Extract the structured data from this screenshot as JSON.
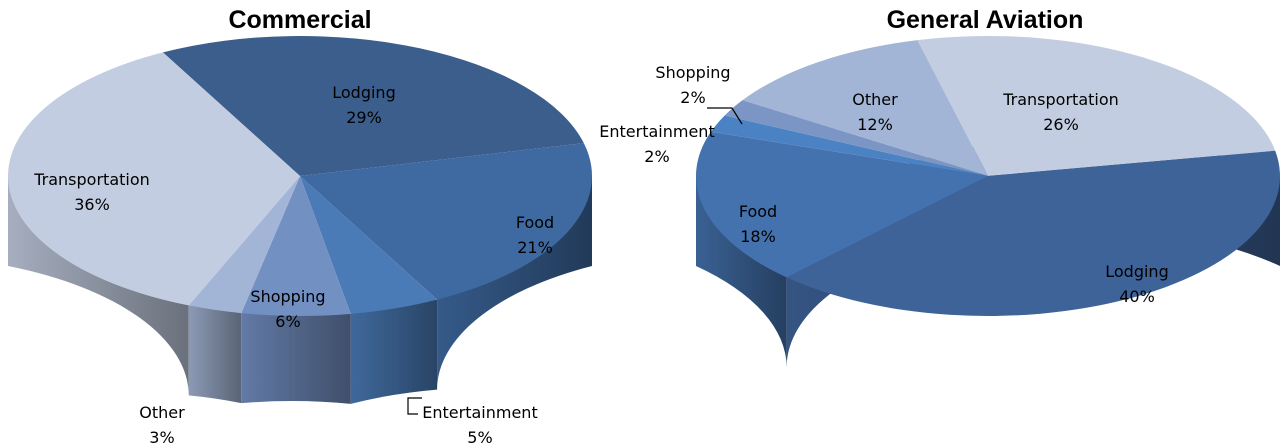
{
  "chart_data": [
    {
      "type": "pie",
      "style": "3d",
      "title": "Commercial",
      "slices": [
        {
          "label": "Lodging",
          "value": 29,
          "pct_label": "29%",
          "color": "#3C5E8C"
        },
        {
          "label": "Food",
          "value": 21,
          "pct_label": "21%",
          "color": "#3E6AA1"
        },
        {
          "label": "Entertainment",
          "value": 5,
          "pct_label": "5%",
          "color": "#4A7BB7"
        },
        {
          "label": "Shopping",
          "value": 6,
          "pct_label": "6%",
          "color": "#7390C3"
        },
        {
          "label": "Other",
          "value": 3,
          "pct_label": "3%",
          "color": "#A3B5D6"
        },
        {
          "label": "Transportation",
          "value": 36,
          "pct_label": "36%",
          "color": "#C3CDE1"
        }
      ]
    },
    {
      "type": "pie",
      "style": "3d",
      "title": "General Aviation",
      "slices": [
        {
          "label": "Transportation",
          "value": 26,
          "pct_label": "26%",
          "color": "#C3CDE1"
        },
        {
          "label": "Lodging",
          "value": 40,
          "pct_label": "40%",
          "color": "#3E6399"
        },
        {
          "label": "Food",
          "value": 18,
          "pct_label": "18%",
          "color": "#4472AE"
        },
        {
          "label": "Entertainment",
          "value": 2,
          "pct_label": "2%",
          "color": "#4A82C4"
        },
        {
          "label": "Shopping",
          "value": 2,
          "pct_label": "2%",
          "color": "#7B96C4"
        },
        {
          "label": "Other",
          "value": 12,
          "pct_label": "12%",
          "color": "#A3B5D6"
        }
      ]
    }
  ]
}
